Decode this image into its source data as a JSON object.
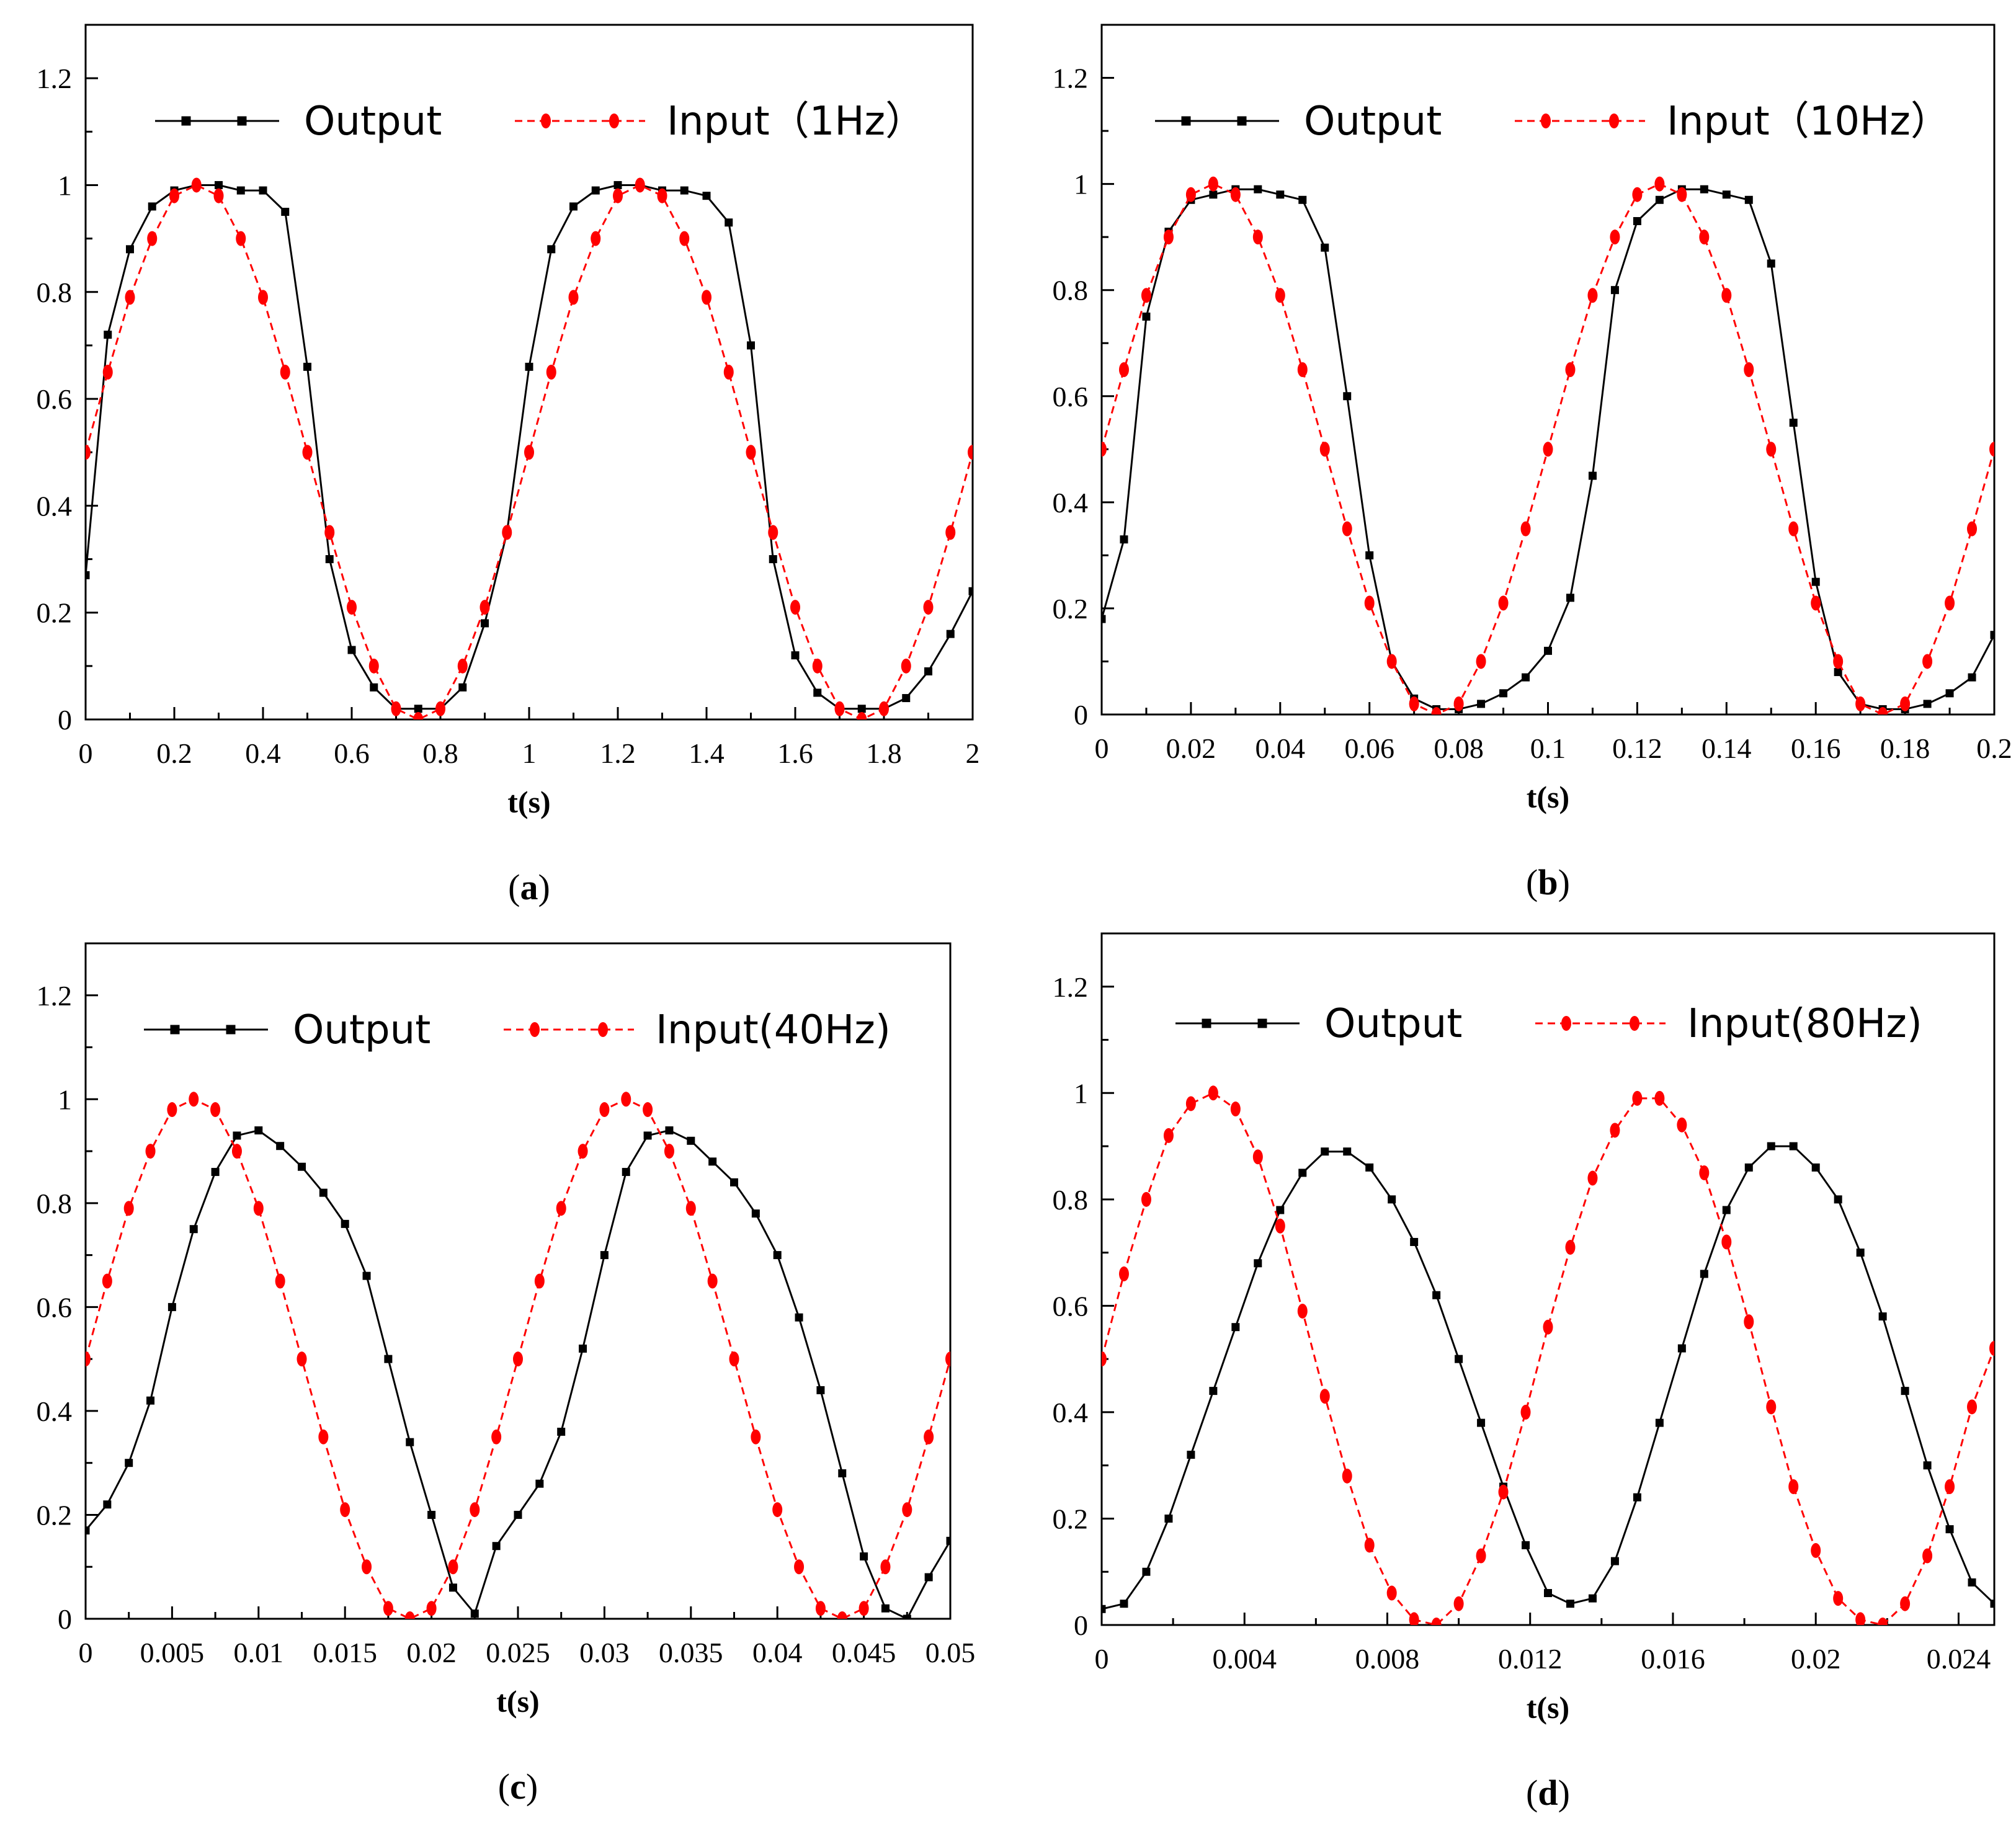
{
  "colors": {
    "output": "#000000",
    "input": "#ff0000",
    "axis": "#000000",
    "background": "#ffffff"
  },
  "chart_data": [
    {
      "panel_label": "(a)",
      "type": "line",
      "xlabel": "t(s)",
      "ylabel": "",
      "xlim": [
        0,
        2
      ],
      "ylim": [
        0,
        1.3
      ],
      "x_ticks": [
        0,
        0.2,
        0.4,
        0.6,
        0.8,
        1,
        1.2,
        1.4,
        1.6,
        1.8,
        2
      ],
      "x_tick_labels": [
        "0",
        "0.2",
        "0.4",
        "0.6",
        "0.8",
        "1",
        "1.2",
        "1.4",
        "1.6",
        "1.8",
        "2"
      ],
      "y_ticks": [
        0,
        0.2,
        0.4,
        0.6,
        0.8,
        1,
        1.2
      ],
      "y_tick_labels": [
        "0",
        "0.2",
        "0.4",
        "0.6",
        "0.8",
        "1",
        "1.2"
      ],
      "legend": [
        "Output",
        "Input（1Hz）"
      ],
      "series": [
        {
          "name": "Output",
          "style": "solid-square",
          "x": [
            0,
            0.05,
            0.1,
            0.15,
            0.2,
            0.25,
            0.3,
            0.35,
            0.4,
            0.45,
            0.5,
            0.55,
            0.6,
            0.65,
            0.7,
            0.75,
            0.8,
            0.85,
            0.9,
            0.95,
            1.0,
            1.05,
            1.1,
            1.15,
            1.2,
            1.25,
            1.3,
            1.35,
            1.4,
            1.45,
            1.5,
            1.55,
            1.6,
            1.65,
            1.7,
            1.75,
            1.8,
            1.85,
            1.9,
            1.95,
            2.0
          ],
          "y": [
            0.27,
            0.72,
            0.88,
            0.96,
            0.99,
            1.0,
            1.0,
            0.99,
            0.99,
            0.95,
            0.66,
            0.3,
            0.13,
            0.06,
            0.02,
            0.02,
            0.02,
            0.06,
            0.18,
            0.35,
            0.66,
            0.88,
            0.96,
            0.99,
            1.0,
            1.0,
            0.99,
            0.99,
            0.98,
            0.93,
            0.7,
            0.3,
            0.12,
            0.05,
            0.02,
            0.02,
            0.02,
            0.04,
            0.09,
            0.16,
            0.24
          ]
        },
        {
          "name": "Input（1Hz）",
          "style": "dashed-circle",
          "x": [
            0,
            0.05,
            0.1,
            0.15,
            0.2,
            0.25,
            0.3,
            0.35,
            0.4,
            0.45,
            0.5,
            0.55,
            0.6,
            0.65,
            0.7,
            0.75,
            0.8,
            0.85,
            0.9,
            0.95,
            1.0,
            1.05,
            1.1,
            1.15,
            1.2,
            1.25,
            1.3,
            1.35,
            1.4,
            1.45,
            1.5,
            1.55,
            1.6,
            1.65,
            1.7,
            1.75,
            1.8,
            1.85,
            1.9,
            1.95,
            2.0
          ],
          "y": [
            0.5,
            0.65,
            0.79,
            0.9,
            0.98,
            1.0,
            0.98,
            0.9,
            0.79,
            0.65,
            0.5,
            0.35,
            0.21,
            0.1,
            0.02,
            0.0,
            0.02,
            0.1,
            0.21,
            0.35,
            0.5,
            0.65,
            0.79,
            0.9,
            0.98,
            1.0,
            0.98,
            0.9,
            0.79,
            0.65,
            0.5,
            0.35,
            0.21,
            0.1,
            0.02,
            0.0,
            0.02,
            0.1,
            0.21,
            0.35,
            0.5
          ]
        }
      ]
    },
    {
      "panel_label": "(b)",
      "type": "line",
      "xlabel": "t(s)",
      "ylabel": "",
      "xlim": [
        0,
        0.2
      ],
      "ylim": [
        0,
        1.3
      ],
      "x_ticks": [
        0,
        0.02,
        0.04,
        0.06,
        0.08,
        0.1,
        0.12,
        0.14,
        0.16,
        0.18,
        0.2
      ],
      "x_tick_labels": [
        "0",
        "0.02",
        "0.04",
        "0.06",
        "0.08",
        "0.1",
        "0.12",
        "0.14",
        "0.16",
        "0.18",
        "0.2"
      ],
      "y_ticks": [
        0,
        0.2,
        0.4,
        0.6,
        0.8,
        1,
        1.2
      ],
      "y_tick_labels": [
        "0",
        "0.2",
        "0.4",
        "0.6",
        "0.8",
        "1",
        "1.2"
      ],
      "legend": [
        "Output",
        "Input（10Hz）"
      ],
      "series": [
        {
          "name": "Output",
          "style": "solid-square",
          "x": [
            0,
            0.005,
            0.01,
            0.015,
            0.02,
            0.025,
            0.03,
            0.035,
            0.04,
            0.045,
            0.05,
            0.055,
            0.06,
            0.065,
            0.07,
            0.075,
            0.08,
            0.085,
            0.09,
            0.095,
            0.1,
            0.105,
            0.11,
            0.115,
            0.12,
            0.125,
            0.13,
            0.135,
            0.14,
            0.145,
            0.15,
            0.155,
            0.16,
            0.165,
            0.17,
            0.175,
            0.18,
            0.185,
            0.19,
            0.195,
            0.2
          ],
          "y": [
            0.18,
            0.33,
            0.75,
            0.91,
            0.97,
            0.98,
            0.99,
            0.99,
            0.98,
            0.97,
            0.88,
            0.6,
            0.3,
            0.1,
            0.03,
            0.01,
            0.01,
            0.02,
            0.04,
            0.07,
            0.12,
            0.22,
            0.45,
            0.8,
            0.93,
            0.97,
            0.99,
            0.99,
            0.98,
            0.97,
            0.85,
            0.55,
            0.25,
            0.08,
            0.02,
            0.01,
            0.01,
            0.02,
            0.04,
            0.07,
            0.15
          ]
        },
        {
          "name": "Input（10Hz）",
          "style": "dashed-circle",
          "x": [
            0,
            0.005,
            0.01,
            0.015,
            0.02,
            0.025,
            0.03,
            0.035,
            0.04,
            0.045,
            0.05,
            0.055,
            0.06,
            0.065,
            0.07,
            0.075,
            0.08,
            0.085,
            0.09,
            0.095,
            0.1,
            0.105,
            0.11,
            0.115,
            0.12,
            0.125,
            0.13,
            0.135,
            0.14,
            0.145,
            0.15,
            0.155,
            0.16,
            0.165,
            0.17,
            0.175,
            0.18,
            0.185,
            0.19,
            0.195,
            0.2
          ],
          "y": [
            0.5,
            0.65,
            0.79,
            0.9,
            0.98,
            1.0,
            0.98,
            0.9,
            0.79,
            0.65,
            0.5,
            0.35,
            0.21,
            0.1,
            0.02,
            0.0,
            0.02,
            0.1,
            0.21,
            0.35,
            0.5,
            0.65,
            0.79,
            0.9,
            0.98,
            1.0,
            0.98,
            0.9,
            0.79,
            0.65,
            0.5,
            0.35,
            0.21,
            0.1,
            0.02,
            0.0,
            0.02,
            0.1,
            0.21,
            0.35,
            0.5
          ]
        }
      ]
    },
    {
      "panel_label": "(c)",
      "type": "line",
      "xlabel": "t(s)",
      "ylabel": "",
      "xlim": [
        0,
        0.05
      ],
      "ylim": [
        0,
        1.3
      ],
      "x_ticks": [
        0,
        0.005,
        0.01,
        0.015,
        0.02,
        0.025,
        0.03,
        0.035,
        0.04,
        0.045,
        0.05
      ],
      "x_tick_labels": [
        "0",
        "0.005",
        "0.01",
        "0.015",
        "0.02",
        "0.025",
        "0.03",
        "0.035",
        "0.04",
        "0.045",
        "0.05"
      ],
      "y_ticks": [
        0,
        0.2,
        0.4,
        0.6,
        0.8,
        1,
        1.2
      ],
      "y_tick_labels": [
        "0",
        "0.2",
        "0.4",
        "0.6",
        "0.8",
        "1",
        "1.2"
      ],
      "legend": [
        "Output",
        "Input(40Hz)"
      ],
      "series": [
        {
          "name": "Output",
          "style": "solid-square",
          "x": [
            0,
            0.00125,
            0.0025,
            0.00375,
            0.005,
            0.00625,
            0.0075,
            0.00875,
            0.01,
            0.01125,
            0.0125,
            0.01375,
            0.015,
            0.01625,
            0.0175,
            0.01875,
            0.02,
            0.02125,
            0.0225,
            0.02375,
            0.025,
            0.02625,
            0.0275,
            0.02875,
            0.03,
            0.03125,
            0.0325,
            0.03375,
            0.035,
            0.03625,
            0.0375,
            0.03875,
            0.04,
            0.04125,
            0.0425,
            0.04375,
            0.045,
            0.04625,
            0.0475,
            0.04875,
            0.05
          ],
          "y": [
            0.17,
            0.22,
            0.3,
            0.42,
            0.6,
            0.75,
            0.86,
            0.93,
            0.94,
            0.91,
            0.87,
            0.82,
            0.76,
            0.66,
            0.5,
            0.34,
            0.2,
            0.06,
            0.01,
            0.14,
            0.2,
            0.26,
            0.36,
            0.52,
            0.7,
            0.86,
            0.93,
            0.94,
            0.92,
            0.88,
            0.84,
            0.78,
            0.7,
            0.58,
            0.44,
            0.28,
            0.12,
            0.02,
            0.0,
            0.08,
            0.15
          ]
        },
        {
          "name": "Input(40Hz)",
          "style": "dashed-circle",
          "x": [
            0,
            0.00125,
            0.0025,
            0.00375,
            0.005,
            0.00625,
            0.0075,
            0.00875,
            0.01,
            0.01125,
            0.0125,
            0.01375,
            0.015,
            0.01625,
            0.0175,
            0.01875,
            0.02,
            0.02125,
            0.0225,
            0.02375,
            0.025,
            0.02625,
            0.0275,
            0.02875,
            0.03,
            0.03125,
            0.0325,
            0.03375,
            0.035,
            0.03625,
            0.0375,
            0.03875,
            0.04,
            0.04125,
            0.0425,
            0.04375,
            0.045,
            0.04625,
            0.0475,
            0.04875,
            0.05
          ],
          "y": [
            0.5,
            0.65,
            0.79,
            0.9,
            0.98,
            1.0,
            0.98,
            0.9,
            0.79,
            0.65,
            0.5,
            0.35,
            0.21,
            0.1,
            0.02,
            0.0,
            0.02,
            0.1,
            0.21,
            0.35,
            0.5,
            0.65,
            0.79,
            0.9,
            0.98,
            1.0,
            0.98,
            0.9,
            0.79,
            0.65,
            0.5,
            0.35,
            0.21,
            0.1,
            0.02,
            0.0,
            0.02,
            0.1,
            0.21,
            0.35,
            0.5
          ]
        }
      ]
    },
    {
      "panel_label": "(d)",
      "type": "line",
      "xlabel": "t(s)",
      "ylabel": "",
      "xlim": [
        0,
        0.025
      ],
      "ylim": [
        0,
        1.3
      ],
      "x_ticks": [
        0,
        0.004,
        0.008,
        0.012,
        0.016,
        0.02,
        0.024
      ],
      "x_tick_labels": [
        "0",
        "0.004",
        "0.008",
        "0.012",
        "0.016",
        "0.02",
        "0.024"
      ],
      "y_ticks": [
        0,
        0.2,
        0.4,
        0.6,
        0.8,
        1,
        1.2
      ],
      "y_tick_labels": [
        "0",
        "0.2",
        "0.4",
        "0.6",
        "0.8",
        "1",
        "1.2"
      ],
      "legend": [
        "Output",
        "Input(80Hz)"
      ],
      "series": [
        {
          "name": "Output",
          "style": "solid-square",
          "x": [
            0,
            0.000625,
            0.00125,
            0.001875,
            0.0025,
            0.003125,
            0.00375,
            0.004375,
            0.005,
            0.005625,
            0.00625,
            0.006875,
            0.0075,
            0.008125,
            0.00875,
            0.009375,
            0.01,
            0.010625,
            0.01125,
            0.011875,
            0.0125,
            0.013125,
            0.01375,
            0.014375,
            0.015,
            0.015625,
            0.01625,
            0.016875,
            0.0175,
            0.018125,
            0.01875,
            0.019375,
            0.02,
            0.020625,
            0.02125,
            0.021875,
            0.0225,
            0.023125,
            0.02375,
            0.024375,
            0.025
          ],
          "y": [
            0.03,
            0.04,
            0.1,
            0.2,
            0.32,
            0.44,
            0.56,
            0.68,
            0.78,
            0.85,
            0.89,
            0.89,
            0.86,
            0.8,
            0.72,
            0.62,
            0.5,
            0.38,
            0.26,
            0.15,
            0.06,
            0.04,
            0.05,
            0.12,
            0.24,
            0.38,
            0.52,
            0.66,
            0.78,
            0.86,
            0.9,
            0.9,
            0.86,
            0.8,
            0.7,
            0.58,
            0.44,
            0.3,
            0.18,
            0.08,
            0.04
          ]
        },
        {
          "name": "Input(80Hz)",
          "style": "dashed-circle",
          "x": [
            0,
            0.000625,
            0.00125,
            0.001875,
            0.0025,
            0.003125,
            0.00375,
            0.004375,
            0.005,
            0.005625,
            0.00625,
            0.006875,
            0.0075,
            0.008125,
            0.00875,
            0.009375,
            0.01,
            0.010625,
            0.01125,
            0.011875,
            0.0125,
            0.013125,
            0.01375,
            0.014375,
            0.015,
            0.015625,
            0.01625,
            0.016875,
            0.0175,
            0.018125,
            0.01875,
            0.019375,
            0.02,
            0.020625,
            0.02125,
            0.021875,
            0.0225,
            0.023125,
            0.02375,
            0.024375,
            0.025
          ],
          "y": [
            0.5,
            0.66,
            0.8,
            0.92,
            0.98,
            1.0,
            0.97,
            0.88,
            0.75,
            0.59,
            0.43,
            0.28,
            0.15,
            0.06,
            0.01,
            0.0,
            0.04,
            0.13,
            0.25,
            0.4,
            0.56,
            0.71,
            0.84,
            0.93,
            0.99,
            0.99,
            0.94,
            0.85,
            0.72,
            0.57,
            0.41,
            0.26,
            0.14,
            0.05,
            0.01,
            0.0,
            0.04,
            0.13,
            0.26,
            0.41,
            0.52
          ]
        }
      ]
    }
  ]
}
